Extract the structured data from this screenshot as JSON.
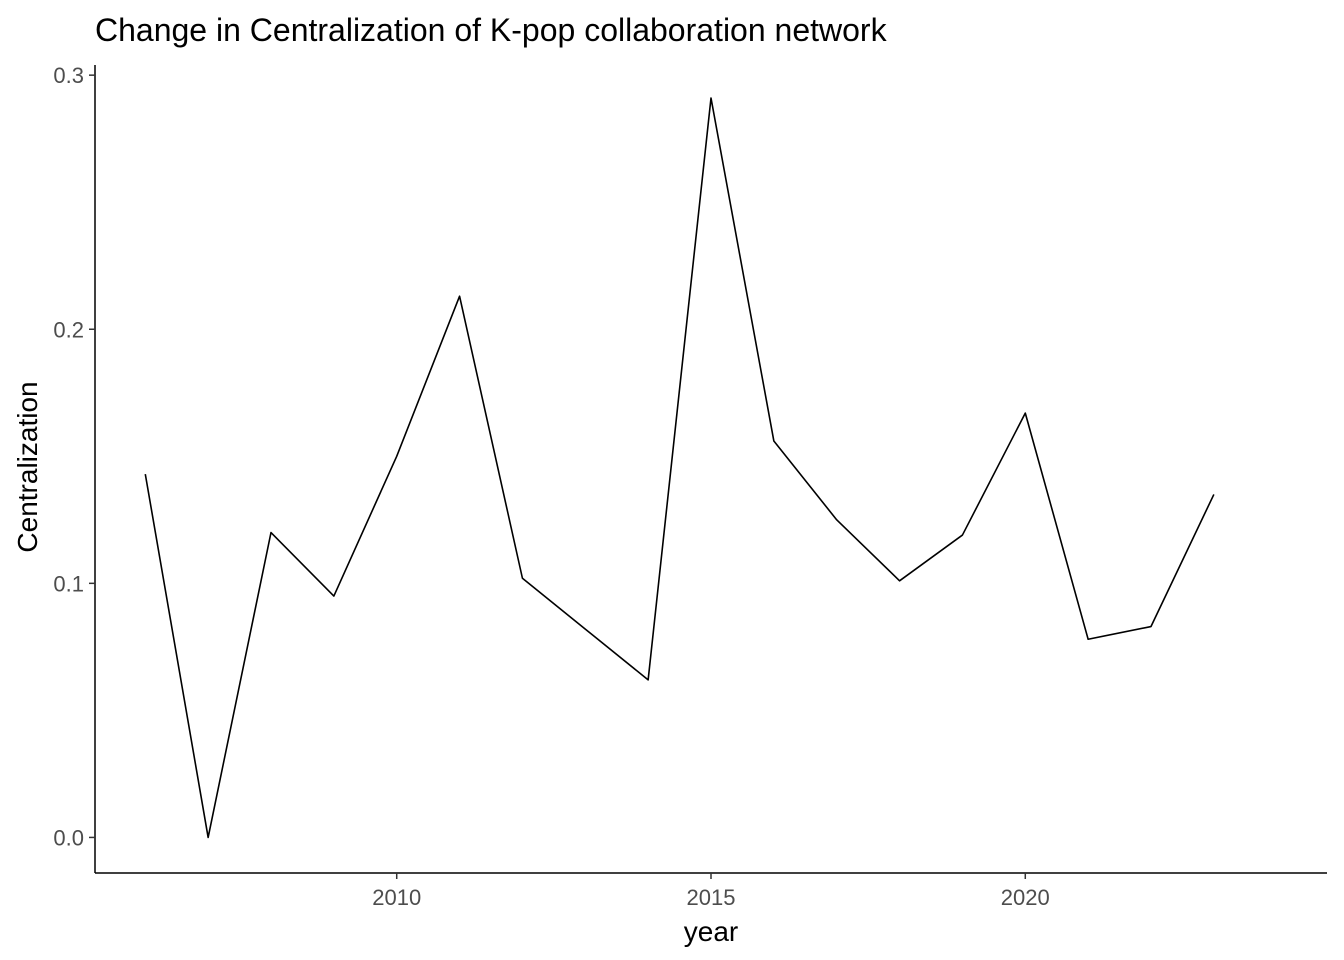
{
  "chart_data": {
    "type": "line",
    "title": "Change in Centralization of K-pop collaboration network",
    "xlabel": "year",
    "ylabel": "Centralization",
    "x": [
      2006,
      2007,
      2008,
      2009,
      2010,
      2011,
      2012,
      2013,
      2014,
      2015,
      2016,
      2017,
      2018,
      2019,
      2020,
      2021,
      2022,
      2023
    ],
    "series": [
      {
        "values": [
          0.143,
          0.0,
          0.12,
          0.095,
          0.15,
          0.213,
          0.102,
          0.082,
          0.062,
          0.291,
          0.156,
          0.125,
          0.101,
          0.119,
          0.167,
          0.078,
          0.083,
          0.135
        ]
      }
    ],
    "xlim": [
      2005.2,
      2024.8
    ],
    "ylim": [
      -0.014,
      0.304
    ],
    "x_ticks": [
      2010,
      2015,
      2020
    ],
    "x_tick_labels": [
      "2010",
      "2015",
      "2020"
    ],
    "y_ticks": [
      0.0,
      0.1,
      0.2,
      0.3
    ],
    "y_tick_labels": [
      "0.0",
      "0.1",
      "0.2",
      "0.3"
    ],
    "grid": false,
    "line_color": "#000000",
    "tick_label_color": "#4d4d4d"
  }
}
